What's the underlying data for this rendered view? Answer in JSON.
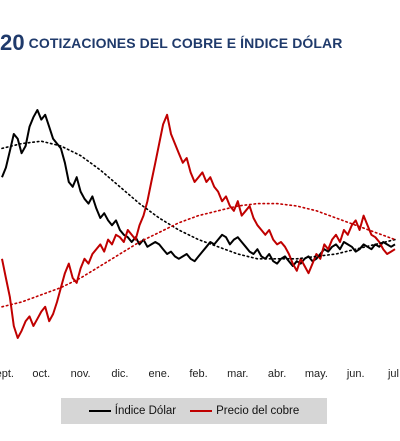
{
  "header": {
    "number": "20",
    "title": "COTIZACIONES DEL COBRE E ÍNDICE DÓLAR"
  },
  "colors": {
    "title": "#1f3a6b",
    "dollar": "#000000",
    "copper": "#c00000",
    "legend_bg": "#d6d6d6"
  },
  "chart_data": {
    "type": "line",
    "categories": [
      "sept.",
      "oct.",
      "nov.",
      "dic.",
      "ene.",
      "feb.",
      "mar.",
      "abr.",
      "may.",
      "jun.",
      "jul."
    ],
    "grid": false,
    "y_axis_labels": "none",
    "series": [
      {
        "name": "Índice Dólar",
        "color": "#000000",
        "style": "solid",
        "x": [
          0,
          0.1,
          0.2,
          0.3,
          0.4,
          0.5,
          0.6,
          0.7,
          0.8,
          0.9,
          1,
          1.1,
          1.2,
          1.3,
          1.4,
          1.5,
          1.6,
          1.7,
          1.8,
          1.9,
          2,
          2.1,
          2.2,
          2.3,
          2.4,
          2.5,
          2.6,
          2.7,
          2.8,
          2.9,
          3,
          3.1,
          3.2,
          3.3,
          3.4,
          3.5,
          3.6,
          3.7,
          3.8,
          3.9,
          4,
          4.1,
          4.2,
          4.3,
          4.4,
          4.5,
          4.6,
          4.7,
          4.8,
          4.9,
          5,
          5.1,
          5.2,
          5.3,
          5.4,
          5.5,
          5.6,
          5.7,
          5.8,
          5.9,
          6,
          6.1,
          6.2,
          6.3,
          6.4,
          6.5,
          6.6,
          6.7,
          6.8,
          6.9,
          7,
          7.1,
          7.2,
          7.3,
          7.4,
          7.5,
          7.6,
          7.7,
          7.8,
          7.9,
          8,
          8.1,
          8.2,
          8.3,
          8.4,
          8.5,
          8.6,
          8.7,
          8.8,
          8.9,
          9,
          9.1,
          9.2,
          9.3,
          9.4,
          9.5,
          9.6,
          9.7,
          9.8,
          9.9,
          10
        ],
        "values": [
          72,
          76,
          83,
          90,
          88,
          82,
          85,
          93,
          97,
          100,
          96,
          98,
          93,
          88,
          86,
          84,
          78,
          70,
          68,
          72,
          66,
          63,
          61,
          64,
          59,
          55,
          57,
          54,
          52,
          54,
          50,
          48,
          47,
          45,
          47,
          44,
          46,
          43,
          44,
          45,
          44,
          42,
          40,
          41,
          39,
          38,
          39,
          40,
          38,
          37,
          39,
          41,
          43,
          45,
          44,
          46,
          48,
          47,
          44,
          46,
          47,
          45,
          43,
          41,
          40,
          42,
          39,
          38,
          40,
          37,
          36,
          38,
          39,
          37,
          35,
          37,
          36,
          38,
          39,
          37,
          38,
          40,
          42,
          41,
          43,
          44,
          42,
          45,
          44,
          43,
          41,
          42,
          44,
          43,
          42,
          44,
          43,
          45,
          44,
          43,
          44
        ]
      },
      {
        "name": "Precio del cobre",
        "color": "#c00000",
        "style": "solid",
        "x": [
          0,
          0.1,
          0.2,
          0.3,
          0.4,
          0.5,
          0.6,
          0.7,
          0.8,
          0.9,
          1,
          1.1,
          1.2,
          1.3,
          1.4,
          1.5,
          1.6,
          1.7,
          1.8,
          1.9,
          2,
          2.1,
          2.2,
          2.3,
          2.4,
          2.5,
          2.6,
          2.7,
          2.8,
          2.9,
          3,
          3.1,
          3.2,
          3.3,
          3.4,
          3.5,
          3.6,
          3.7,
          3.8,
          3.9,
          4,
          4.1,
          4.2,
          4.3,
          4.4,
          4.5,
          4.6,
          4.7,
          4.8,
          4.9,
          5,
          5.1,
          5.2,
          5.3,
          5.4,
          5.5,
          5.6,
          5.7,
          5.8,
          5.9,
          6,
          6.1,
          6.2,
          6.3,
          6.4,
          6.5,
          6.6,
          6.7,
          6.8,
          6.9,
          7,
          7.1,
          7.2,
          7.3,
          7.4,
          7.5,
          7.6,
          7.7,
          7.8,
          7.9,
          8,
          8.1,
          8.2,
          8.3,
          8.4,
          8.5,
          8.6,
          8.7,
          8.8,
          8.9,
          9,
          9.1,
          9.2,
          9.3,
          9.4,
          9.5,
          9.6,
          9.7,
          9.8,
          9.9,
          10
        ],
        "values": [
          38,
          30,
          22,
          10,
          5,
          8,
          12,
          14,
          10,
          13,
          16,
          18,
          12,
          15,
          20,
          26,
          32,
          36,
          30,
          28,
          34,
          38,
          36,
          40,
          42,
          44,
          41,
          46,
          44,
          48,
          47,
          45,
          50,
          48,
          46,
          52,
          56,
          62,
          70,
          78,
          86,
          94,
          98,
          90,
          86,
          82,
          78,
          80,
          74,
          70,
          72,
          74,
          70,
          72,
          68,
          66,
          62,
          64,
          60,
          58,
          62,
          56,
          58,
          60,
          55,
          52,
          50,
          48,
          50,
          46,
          44,
          45,
          43,
          40,
          36,
          33,
          38,
          35,
          32,
          36,
          40,
          38,
          44,
          42,
          46,
          48,
          45,
          50,
          48,
          52,
          54,
          50,
          56,
          52,
          48,
          47,
          45,
          42,
          40,
          41,
          42
        ]
      },
      {
        "name": "",
        "color": "#000000",
        "style": "dotted",
        "trend_of": "Índice Dólar",
        "x": [
          0,
          0.5,
          1,
          1.5,
          2,
          2.5,
          3,
          3.5,
          4,
          4.5,
          5,
          5.5,
          6,
          6.5,
          7,
          7.5,
          8,
          8.5,
          9,
          9.5,
          10
        ],
        "values": [
          84,
          86,
          87,
          85,
          81,
          75,
          68,
          61,
          55,
          50,
          46,
          43,
          40,
          38,
          38,
          38,
          39,
          40,
          42,
          44,
          46
        ]
      },
      {
        "name": "",
        "color": "#c00000",
        "style": "dotted",
        "trend_of": "Precio del cobre",
        "x": [
          0,
          0.5,
          1,
          1.5,
          2,
          2.5,
          3,
          3.5,
          4,
          4.5,
          5,
          5.5,
          6,
          6.5,
          7,
          7.5,
          8,
          8.5,
          9,
          9.5,
          10
        ],
        "values": [
          18,
          20,
          23,
          26,
          30,
          35,
          40,
          45,
          49,
          53,
          56,
          58,
          60,
          61,
          61,
          60,
          58,
          55,
          52,
          49,
          46
        ]
      }
    ],
    "legend": {
      "position": "bottom",
      "entries": [
        "Índice Dólar",
        "Precio del cobre"
      ]
    }
  }
}
